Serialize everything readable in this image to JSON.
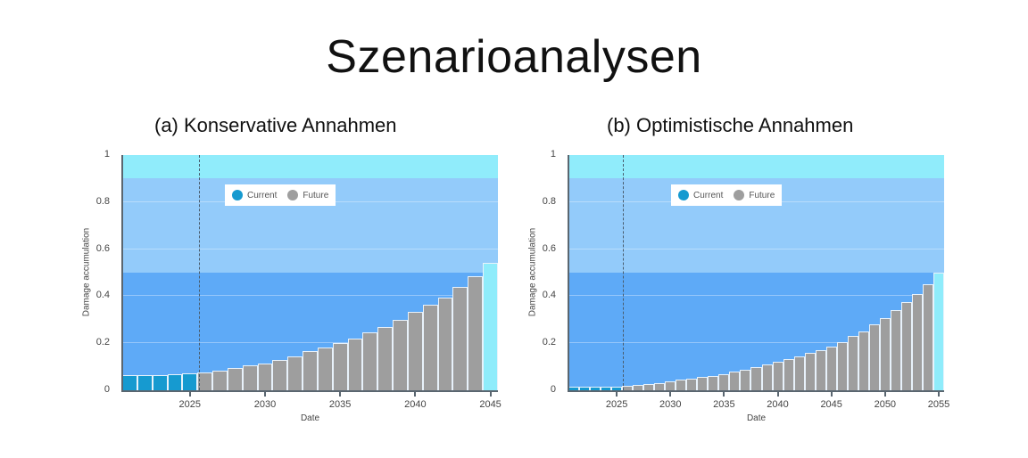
{
  "title": "Szenarioanalysen",
  "colors": {
    "band_low": "#5eaaf7",
    "band_mid": "#93cbfa",
    "band_high": "#90ecfb",
    "current": "#169ad0",
    "future": "#9e9e9e",
    "final": "#8fecfb"
  },
  "chart_data": [
    {
      "type": "bar",
      "title": "(a) Konservative Annahmen",
      "xlabel": "Date",
      "ylabel": "Damage accumulation",
      "ylim": [
        0,
        1
      ],
      "yticks": [
        "0",
        "0.2",
        "0.4",
        "0.6",
        "0.8",
        "1"
      ],
      "xticks": [
        "2025",
        "2030",
        "2035",
        "2040",
        "2045"
      ],
      "legend": [
        "Current",
        "Future"
      ],
      "legend_position": "top-center",
      "bands": [
        {
          "from": 0,
          "to": 0.5,
          "color": "#5eaaf7"
        },
        {
          "from": 0.5,
          "to": 0.9,
          "color": "#93cbfa"
        },
        {
          "from": 0.9,
          "to": 1.0,
          "color": "#90ecfb"
        }
      ],
      "current_marker_year": 2025.6,
      "x": [
        2021,
        2022,
        2023,
        2024,
        2025,
        2026,
        2027,
        2028,
        2029,
        2030,
        2031,
        2032,
        2033,
        2034,
        2035,
        2036,
        2037,
        2038,
        2039,
        2040,
        2041,
        2042,
        2043,
        2044,
        2045
      ],
      "series": [
        {
          "name": "Current",
          "values": [
            0.065,
            0.065,
            0.065,
            0.067,
            0.072,
            null,
            null,
            null,
            null,
            null,
            null,
            null,
            null,
            null,
            null,
            null,
            null,
            null,
            null,
            null,
            null,
            null,
            null,
            null,
            null
          ]
        },
        {
          "name": "Future",
          "values": [
            null,
            null,
            null,
            null,
            null,
            0.075,
            0.085,
            0.095,
            0.105,
            0.115,
            0.13,
            0.145,
            0.165,
            0.18,
            0.2,
            0.22,
            0.245,
            0.27,
            0.3,
            0.335,
            0.365,
            0.395,
            0.44,
            0.485,
            0.54
          ]
        }
      ],
      "final_bar_highlight": {
        "year": 2045,
        "value": 0.54
      }
    },
    {
      "type": "bar",
      "title": "(b) Optimistische Annahmen",
      "xlabel": "Date",
      "ylabel": "Damage accumulation",
      "ylim": [
        0,
        1
      ],
      "yticks": [
        "0",
        "0.2",
        "0.4",
        "0.6",
        "0.8",
        "1"
      ],
      "xticks": [
        "2025",
        "2030",
        "2035",
        "2040",
        "2045",
        "2050",
        "2055"
      ],
      "legend": [
        "Current",
        "Future"
      ],
      "legend_position": "top-center",
      "bands": [
        {
          "from": 0,
          "to": 0.5,
          "color": "#5eaaf7"
        },
        {
          "from": 0.5,
          "to": 0.9,
          "color": "#93cbfa"
        },
        {
          "from": 0.9,
          "to": 1.0,
          "color": "#90ecfb"
        }
      ],
      "current_marker_year": 2025.6,
      "x": [
        2021,
        2022,
        2023,
        2024,
        2025,
        2026,
        2027,
        2028,
        2029,
        2030,
        2031,
        2032,
        2033,
        2034,
        2035,
        2036,
        2037,
        2038,
        2039,
        2040,
        2041,
        2042,
        2043,
        2044,
        2045,
        2046,
        2047,
        2048,
        2049,
        2050,
        2051,
        2052,
        2053,
        2054,
        2055
      ],
      "series": [
        {
          "name": "Current",
          "values": [
            0.015,
            0.015,
            0.017,
            0.017,
            0.017,
            null,
            null,
            null,
            null,
            null,
            null,
            null,
            null,
            null,
            null,
            null,
            null,
            null,
            null,
            null,
            null,
            null,
            null,
            null,
            null,
            null,
            null,
            null,
            null,
            null,
            null,
            null,
            null,
            null,
            null
          ]
        },
        {
          "name": "Future",
          "values": [
            null,
            null,
            null,
            null,
            null,
            0.02,
            0.024,
            0.028,
            0.032,
            0.038,
            0.045,
            0.05,
            0.055,
            0.062,
            0.07,
            0.078,
            0.088,
            0.1,
            0.11,
            0.12,
            0.132,
            0.145,
            0.16,
            0.172,
            0.185,
            0.205,
            0.23,
            0.25,
            0.28,
            0.305,
            0.34,
            0.375,
            0.41,
            0.45,
            0.5
          ]
        }
      ],
      "final_bar_highlight": {
        "year": 2055,
        "value": 0.5
      }
    }
  ]
}
